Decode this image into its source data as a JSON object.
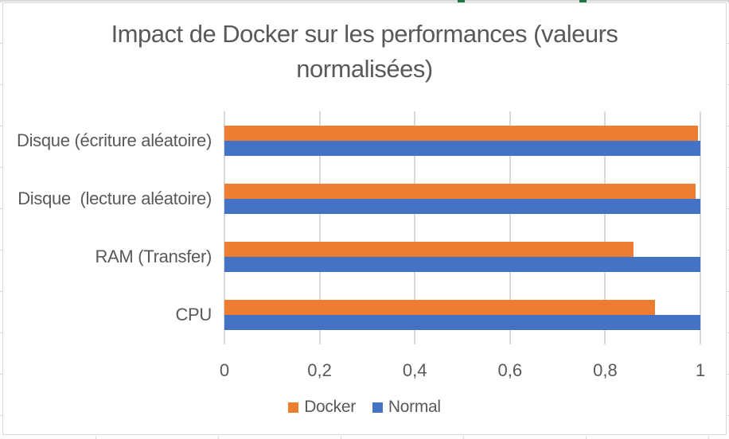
{
  "app": {
    "context": "excel-embedded-chart"
  },
  "colors": {
    "docker": "#ED7D31",
    "normal": "#4472C4",
    "text": "#595959",
    "gridline": "#D9D9D9",
    "chart_border": "#D9D9D9",
    "sheet_line": "#D9D9D9",
    "cell_marker_green": "#217346",
    "background": "#FFFFFF"
  },
  "chart_data": {
    "type": "bar",
    "orientation": "horizontal",
    "title": "Impact de Docker sur les performances (valeurs normalisées)",
    "title_lines": [
      "Impact de Docker sur les performances (valeurs",
      "normalisées)"
    ],
    "categories_top_to_bottom": [
      "Disque (écriture aléatoire)",
      "Disque  (lecture aléatoire)",
      "RAM (Transfer)",
      "CPU"
    ],
    "series": [
      {
        "name": "Docker",
        "color": "#ED7D31",
        "values_top_to_bottom": [
          0.995,
          0.99,
          0.86,
          0.905
        ]
      },
      {
        "name": "Normal",
        "color": "#4472C4",
        "values_top_to_bottom": [
          1,
          1,
          1,
          1
        ]
      }
    ],
    "xlabel": "",
    "ylabel": "",
    "xlim": [
      0,
      1
    ],
    "x_tick_values": [
      0,
      0.2,
      0.4,
      0.6,
      0.8,
      1
    ],
    "x_tick_labels": [
      "0",
      "0,2",
      "0,4",
      "0,6",
      "0,8",
      "1"
    ],
    "grid": "vertical-only",
    "legend_position": "bottom-center",
    "legend_entries": [
      "Docker",
      "Normal"
    ]
  }
}
